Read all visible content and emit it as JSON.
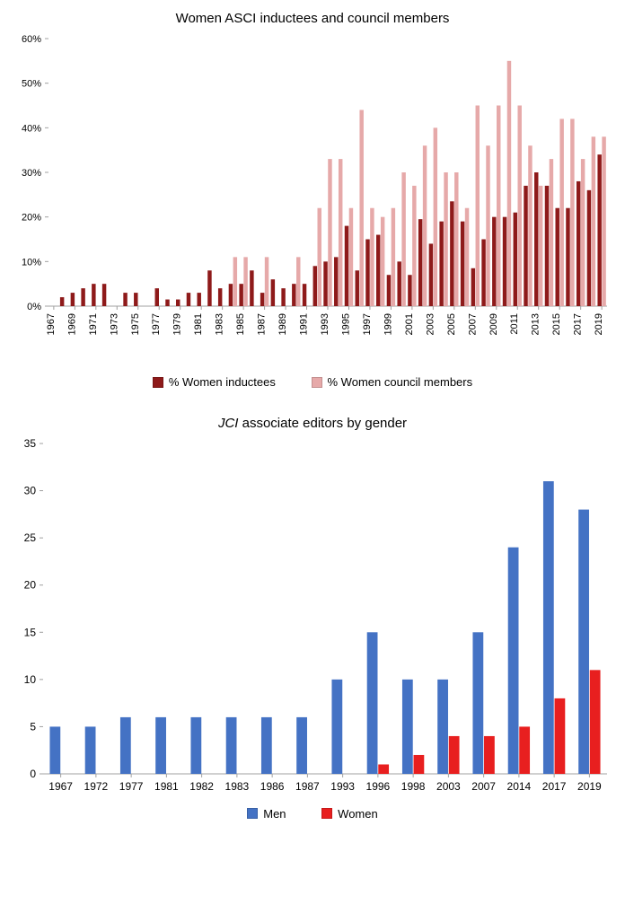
{
  "top_chart": {
    "type": "bar",
    "title": "Women ASCI inductees and council members",
    "title_fontsize": 15,
    "background_color": "#ffffff",
    "ylim": [
      0,
      60
    ],
    "ytick_step": 10,
    "ytick_suffix": "%",
    "label_fontsize": 11,
    "grid": false,
    "series": [
      {
        "name": "% Women inductees",
        "color": "#8e1a1a"
      },
      {
        "name": "% Women council members",
        "color": "#e6a9a9"
      }
    ],
    "categories": [
      "1967",
      "1968",
      "1969",
      "1970",
      "1971",
      "1972",
      "1973",
      "1974",
      "1975",
      "1976",
      "1977",
      "1978",
      "1979",
      "1980",
      "1981",
      "1982",
      "1983",
      "1984",
      "1985",
      "1986",
      "1987",
      "1988",
      "1989",
      "1990",
      "1991",
      "1992",
      "1993",
      "1994",
      "1995",
      "1996",
      "1997",
      "1998",
      "1999",
      "2000",
      "2001",
      "2002",
      "2003",
      "2004",
      "2005",
      "2006",
      "2007",
      "2008",
      "2009",
      "2010",
      "2011",
      "2012",
      "2013",
      "2014",
      "2015",
      "2016",
      "2017",
      "2018",
      "2019"
    ],
    "x_label_step": 2,
    "rows": [
      {
        "inductees": 0,
        "council": 0
      },
      {
        "inductees": 2,
        "council": 0
      },
      {
        "inductees": 3,
        "council": 0
      },
      {
        "inductees": 4,
        "council": 0
      },
      {
        "inductees": 5,
        "council": 0
      },
      {
        "inductees": 5,
        "council": 0
      },
      {
        "inductees": 0,
        "council": 0
      },
      {
        "inductees": 3,
        "council": 0
      },
      {
        "inductees": 3,
        "council": 0
      },
      {
        "inductees": 0,
        "council": 0
      },
      {
        "inductees": 4,
        "council": 0
      },
      {
        "inductees": 1.5,
        "council": 0
      },
      {
        "inductees": 1.5,
        "council": 0
      },
      {
        "inductees": 3,
        "council": 0
      },
      {
        "inductees": 3,
        "council": 0
      },
      {
        "inductees": 8,
        "council": 0
      },
      {
        "inductees": 4,
        "council": 0
      },
      {
        "inductees": 5,
        "council": 11
      },
      {
        "inductees": 5,
        "council": 11
      },
      {
        "inductees": 8,
        "council": 0
      },
      {
        "inductees": 3,
        "council": 11
      },
      {
        "inductees": 6,
        "council": 0
      },
      {
        "inductees": 4,
        "council": 0
      },
      {
        "inductees": 5,
        "council": 11
      },
      {
        "inductees": 5,
        "council": 0
      },
      {
        "inductees": 9,
        "council": 22
      },
      {
        "inductees": 10,
        "council": 33
      },
      {
        "inductees": 11,
        "council": 33
      },
      {
        "inductees": 18,
        "council": 22
      },
      {
        "inductees": 8,
        "council": 44
      },
      {
        "inductees": 15,
        "council": 22
      },
      {
        "inductees": 16,
        "council": 20
      },
      {
        "inductees": 7,
        "council": 22
      },
      {
        "inductees": 10,
        "council": 30
      },
      {
        "inductees": 7,
        "council": 27
      },
      {
        "inductees": 19.5,
        "council": 36
      },
      {
        "inductees": 14,
        "council": 40
      },
      {
        "inductees": 19,
        "council": 30
      },
      {
        "inductees": 23.5,
        "council": 30
      },
      {
        "inductees": 19,
        "council": 22
      },
      {
        "inductees": 8.5,
        "council": 45
      },
      {
        "inductees": 15,
        "council": 36
      },
      {
        "inductees": 20,
        "council": 45
      },
      {
        "inductees": 20,
        "council": 55
      },
      {
        "inductees": 21,
        "council": 45
      },
      {
        "inductees": 27,
        "council": 36
      },
      {
        "inductees": 30,
        "council": 27
      },
      {
        "inductees": 27,
        "council": 33
      },
      {
        "inductees": 22,
        "council": 42
      },
      {
        "inductees": 22,
        "council": 42
      },
      {
        "inductees": 28,
        "council": 33
      },
      {
        "inductees": 26,
        "council": 38
      },
      {
        "inductees": 34,
        "council": 38
      }
    ]
  },
  "bottom_chart": {
    "type": "bar",
    "title": "JCI associate editors by gender",
    "title_italic_prefix": "JCI",
    "title_fontsize": 15,
    "background_color": "#ffffff",
    "ylim": [
      0,
      35
    ],
    "ytick_step": 5,
    "label_fontsize": 12,
    "grid": false,
    "series": [
      {
        "name": "Men",
        "color": "#4472c4"
      },
      {
        "name": "Women",
        "color": "#e81f1f"
      }
    ],
    "categories": [
      "1967",
      "1972",
      "1977",
      "1981",
      "1982",
      "1983",
      "1986",
      "1987",
      "1993",
      "1996",
      "1998",
      "2003",
      "2007",
      "2014",
      "2017",
      "2019"
    ],
    "rows": [
      {
        "men": 5,
        "women": 0
      },
      {
        "men": 5,
        "women": 0
      },
      {
        "men": 6,
        "women": 0
      },
      {
        "men": 6,
        "women": 0
      },
      {
        "men": 6,
        "women": 0
      },
      {
        "men": 6,
        "women": 0
      },
      {
        "men": 6,
        "women": 0
      },
      {
        "men": 6,
        "women": 0
      },
      {
        "men": 10,
        "women": 0
      },
      {
        "men": 15,
        "women": 1
      },
      {
        "men": 10,
        "women": 2
      },
      {
        "men": 10,
        "women": 4
      },
      {
        "men": 15,
        "women": 4
      },
      {
        "men": 24,
        "women": 5
      },
      {
        "men": 31,
        "women": 8
      },
      {
        "men": 28,
        "women": 11
      }
    ]
  }
}
